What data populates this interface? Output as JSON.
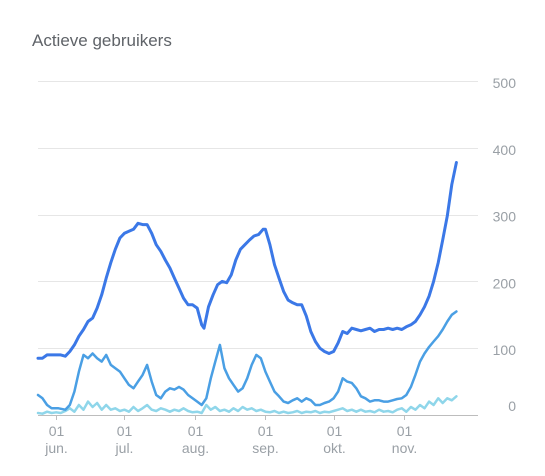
{
  "chart_data": {
    "type": "line",
    "title": "Actieve gebruikers",
    "xlabel": "",
    "ylabel": "",
    "x_domain": [
      "2019-05-24",
      "2019-11-30"
    ],
    "ylim": [
      0,
      500
    ],
    "y_ticks": [
      "0",
      "100",
      "200",
      "300",
      "400",
      "500"
    ],
    "y_axis_side": "right",
    "x_ticks": [
      {
        "date": "2019-06-01",
        "day": "01",
        "month": "jun."
      },
      {
        "date": "2019-07-01",
        "day": "01",
        "month": "jul."
      },
      {
        "date": "2019-08-01",
        "day": "01",
        "month": "aug."
      },
      {
        "date": "2019-09-01",
        "day": "01",
        "month": "sep."
      },
      {
        "date": "2019-10-01",
        "day": "01",
        "month": "okt."
      },
      {
        "date": "2019-11-01",
        "day": "01",
        "month": "nov."
      }
    ],
    "grid": true,
    "legend": "none",
    "series": [
      {
        "color": "#3b78e7",
        "points": [
          [
            "2019-05-24",
            85
          ],
          [
            "2019-05-26",
            85
          ],
          [
            "2019-05-28",
            90
          ],
          [
            "2019-05-30",
            90
          ],
          [
            "2019-06-03",
            90
          ],
          [
            "2019-06-05",
            88
          ],
          [
            "2019-06-07",
            95
          ],
          [
            "2019-06-09",
            105
          ],
          [
            "2019-06-11",
            118
          ],
          [
            "2019-06-13",
            128
          ],
          [
            "2019-06-15",
            140
          ],
          [
            "2019-06-17",
            145
          ],
          [
            "2019-06-19",
            160
          ],
          [
            "2019-06-21",
            180
          ],
          [
            "2019-06-23",
            205
          ],
          [
            "2019-06-25",
            228
          ],
          [
            "2019-06-27",
            248
          ],
          [
            "2019-06-29",
            265
          ],
          [
            "2019-07-01",
            272
          ],
          [
            "2019-07-03",
            275
          ],
          [
            "2019-07-05",
            278
          ],
          [
            "2019-07-07",
            287
          ],
          [
            "2019-07-09",
            285
          ],
          [
            "2019-07-11",
            285
          ],
          [
            "2019-07-13",
            272
          ],
          [
            "2019-07-15",
            255
          ],
          [
            "2019-07-17",
            245
          ],
          [
            "2019-07-19",
            232
          ],
          [
            "2019-07-21",
            220
          ],
          [
            "2019-07-23",
            205
          ],
          [
            "2019-07-25",
            190
          ],
          [
            "2019-07-27",
            175
          ],
          [
            "2019-07-29",
            165
          ],
          [
            "2019-07-31",
            165
          ],
          [
            "2019-08-02",
            160
          ],
          [
            "2019-08-04",
            135
          ],
          [
            "2019-08-05",
            130
          ],
          [
            "2019-08-07",
            162
          ],
          [
            "2019-08-09",
            180
          ],
          [
            "2019-08-11",
            195
          ],
          [
            "2019-08-13",
            200
          ],
          [
            "2019-08-15",
            198
          ],
          [
            "2019-08-17",
            210
          ],
          [
            "2019-08-19",
            232
          ],
          [
            "2019-08-21",
            248
          ],
          [
            "2019-08-23",
            255
          ],
          [
            "2019-08-25",
            262
          ],
          [
            "2019-08-27",
            268
          ],
          [
            "2019-08-29",
            270
          ],
          [
            "2019-08-31",
            278
          ],
          [
            "2019-09-01",
            278
          ],
          [
            "2019-09-03",
            255
          ],
          [
            "2019-09-05",
            225
          ],
          [
            "2019-09-07",
            205
          ],
          [
            "2019-09-09",
            185
          ],
          [
            "2019-09-11",
            172
          ],
          [
            "2019-09-13",
            168
          ],
          [
            "2019-09-15",
            165
          ],
          [
            "2019-09-17",
            165
          ],
          [
            "2019-09-19",
            148
          ],
          [
            "2019-09-21",
            125
          ],
          [
            "2019-09-23",
            110
          ],
          [
            "2019-09-25",
            100
          ],
          [
            "2019-09-27",
            95
          ],
          [
            "2019-09-29",
            92
          ],
          [
            "2019-10-01",
            95
          ],
          [
            "2019-10-03",
            108
          ],
          [
            "2019-10-05",
            125
          ],
          [
            "2019-10-07",
            122
          ],
          [
            "2019-10-09",
            130
          ],
          [
            "2019-10-11",
            128
          ],
          [
            "2019-10-13",
            126
          ],
          [
            "2019-10-15",
            128
          ],
          [
            "2019-10-17",
            130
          ],
          [
            "2019-10-19",
            125
          ],
          [
            "2019-10-21",
            128
          ],
          [
            "2019-10-23",
            128
          ],
          [
            "2019-10-25",
            130
          ],
          [
            "2019-10-27",
            128
          ],
          [
            "2019-10-29",
            130
          ],
          [
            "2019-10-31",
            128
          ],
          [
            "2019-11-02",
            132
          ],
          [
            "2019-11-04",
            135
          ],
          [
            "2019-11-06",
            140
          ],
          [
            "2019-11-08",
            150
          ],
          [
            "2019-11-10",
            162
          ],
          [
            "2019-11-12",
            178
          ],
          [
            "2019-11-14",
            200
          ],
          [
            "2019-11-16",
            228
          ],
          [
            "2019-11-18",
            262
          ],
          [
            "2019-11-20",
            298
          ],
          [
            "2019-11-22",
            345
          ],
          [
            "2019-11-24",
            378
          ]
        ]
      },
      {
        "color": "#4a9fe4",
        "points": [
          [
            "2019-05-24",
            30
          ],
          [
            "2019-05-26",
            25
          ],
          [
            "2019-05-28",
            15
          ],
          [
            "2019-05-30",
            10
          ],
          [
            "2019-06-02",
            10
          ],
          [
            "2019-06-05",
            8
          ],
          [
            "2019-06-07",
            15
          ],
          [
            "2019-06-09",
            35
          ],
          [
            "2019-06-11",
            65
          ],
          [
            "2019-06-13",
            90
          ],
          [
            "2019-06-15",
            85
          ],
          [
            "2019-06-17",
            92
          ],
          [
            "2019-06-19",
            85
          ],
          [
            "2019-06-21",
            80
          ],
          [
            "2019-06-23",
            90
          ],
          [
            "2019-06-25",
            75
          ],
          [
            "2019-06-27",
            70
          ],
          [
            "2019-06-29",
            65
          ],
          [
            "2019-07-01",
            55
          ],
          [
            "2019-07-03",
            45
          ],
          [
            "2019-07-05",
            40
          ],
          [
            "2019-07-07",
            50
          ],
          [
            "2019-07-09",
            60
          ],
          [
            "2019-07-11",
            75
          ],
          [
            "2019-07-13",
            50
          ],
          [
            "2019-07-15",
            30
          ],
          [
            "2019-07-17",
            25
          ],
          [
            "2019-07-19",
            35
          ],
          [
            "2019-07-21",
            40
          ],
          [
            "2019-07-23",
            38
          ],
          [
            "2019-07-25",
            42
          ],
          [
            "2019-07-27",
            38
          ],
          [
            "2019-07-29",
            30
          ],
          [
            "2019-07-31",
            25
          ],
          [
            "2019-08-02",
            20
          ],
          [
            "2019-08-04",
            15
          ],
          [
            "2019-08-06",
            25
          ],
          [
            "2019-08-08",
            55
          ],
          [
            "2019-08-10",
            80
          ],
          [
            "2019-08-12",
            105
          ],
          [
            "2019-08-14",
            70
          ],
          [
            "2019-08-16",
            55
          ],
          [
            "2019-08-18",
            45
          ],
          [
            "2019-08-20",
            35
          ],
          [
            "2019-08-22",
            40
          ],
          [
            "2019-08-24",
            55
          ],
          [
            "2019-08-26",
            75
          ],
          [
            "2019-08-28",
            90
          ],
          [
            "2019-08-30",
            85
          ],
          [
            "2019-09-01",
            65
          ],
          [
            "2019-09-03",
            50
          ],
          [
            "2019-09-05",
            35
          ],
          [
            "2019-09-07",
            28
          ],
          [
            "2019-09-09",
            20
          ],
          [
            "2019-09-11",
            18
          ],
          [
            "2019-09-13",
            22
          ],
          [
            "2019-09-15",
            25
          ],
          [
            "2019-09-17",
            20
          ],
          [
            "2019-09-19",
            25
          ],
          [
            "2019-09-21",
            22
          ],
          [
            "2019-09-23",
            15
          ],
          [
            "2019-09-25",
            15
          ],
          [
            "2019-09-27",
            18
          ],
          [
            "2019-09-29",
            20
          ],
          [
            "2019-10-01",
            25
          ],
          [
            "2019-10-03",
            35
          ],
          [
            "2019-10-05",
            55
          ],
          [
            "2019-10-07",
            50
          ],
          [
            "2019-10-09",
            48
          ],
          [
            "2019-10-11",
            40
          ],
          [
            "2019-10-13",
            28
          ],
          [
            "2019-10-15",
            25
          ],
          [
            "2019-10-17",
            20
          ],
          [
            "2019-10-19",
            22
          ],
          [
            "2019-10-21",
            22
          ],
          [
            "2019-10-23",
            20
          ],
          [
            "2019-10-25",
            20
          ],
          [
            "2019-10-27",
            22
          ],
          [
            "2019-10-29",
            24
          ],
          [
            "2019-10-31",
            25
          ],
          [
            "2019-11-02",
            30
          ],
          [
            "2019-11-04",
            42
          ],
          [
            "2019-11-06",
            60
          ],
          [
            "2019-11-08",
            80
          ],
          [
            "2019-11-10",
            92
          ],
          [
            "2019-11-12",
            102
          ],
          [
            "2019-11-14",
            110
          ],
          [
            "2019-11-16",
            118
          ],
          [
            "2019-11-18",
            128
          ],
          [
            "2019-11-20",
            140
          ],
          [
            "2019-11-22",
            150
          ],
          [
            "2019-11-24",
            155
          ]
        ]
      },
      {
        "color": "#8fd6ea",
        "points": [
          [
            "2019-05-24",
            3
          ],
          [
            "2019-05-26",
            2
          ],
          [
            "2019-05-28",
            5
          ],
          [
            "2019-05-30",
            3
          ],
          [
            "2019-06-01",
            4
          ],
          [
            "2019-06-03",
            3
          ],
          [
            "2019-06-05",
            6
          ],
          [
            "2019-06-07",
            10
          ],
          [
            "2019-06-09",
            5
          ],
          [
            "2019-06-11",
            15
          ],
          [
            "2019-06-13",
            8
          ],
          [
            "2019-06-15",
            20
          ],
          [
            "2019-06-17",
            12
          ],
          [
            "2019-06-19",
            18
          ],
          [
            "2019-06-21",
            8
          ],
          [
            "2019-06-23",
            15
          ],
          [
            "2019-06-25",
            8
          ],
          [
            "2019-06-27",
            10
          ],
          [
            "2019-06-29",
            6
          ],
          [
            "2019-07-01",
            8
          ],
          [
            "2019-07-03",
            5
          ],
          [
            "2019-07-05",
            12
          ],
          [
            "2019-07-07",
            6
          ],
          [
            "2019-07-09",
            10
          ],
          [
            "2019-07-11",
            15
          ],
          [
            "2019-07-13",
            8
          ],
          [
            "2019-07-15",
            6
          ],
          [
            "2019-07-17",
            10
          ],
          [
            "2019-07-19",
            8
          ],
          [
            "2019-07-21",
            5
          ],
          [
            "2019-07-23",
            8
          ],
          [
            "2019-07-25",
            6
          ],
          [
            "2019-07-27",
            10
          ],
          [
            "2019-07-29",
            6
          ],
          [
            "2019-07-31",
            4
          ],
          [
            "2019-08-02",
            5
          ],
          [
            "2019-08-04",
            3
          ],
          [
            "2019-08-06",
            15
          ],
          [
            "2019-08-08",
            8
          ],
          [
            "2019-08-10",
            12
          ],
          [
            "2019-08-12",
            6
          ],
          [
            "2019-08-14",
            8
          ],
          [
            "2019-08-16",
            5
          ],
          [
            "2019-08-18",
            10
          ],
          [
            "2019-08-20",
            6
          ],
          [
            "2019-08-22",
            12
          ],
          [
            "2019-08-24",
            8
          ],
          [
            "2019-08-26",
            10
          ],
          [
            "2019-08-28",
            6
          ],
          [
            "2019-08-30",
            8
          ],
          [
            "2019-09-01",
            5
          ],
          [
            "2019-09-03",
            4
          ],
          [
            "2019-09-05",
            6
          ],
          [
            "2019-09-07",
            3
          ],
          [
            "2019-09-09",
            5
          ],
          [
            "2019-09-11",
            3
          ],
          [
            "2019-09-13",
            4
          ],
          [
            "2019-09-15",
            6
          ],
          [
            "2019-09-17",
            3
          ],
          [
            "2019-09-19",
            5
          ],
          [
            "2019-09-21",
            4
          ],
          [
            "2019-09-23",
            6
          ],
          [
            "2019-09-25",
            3
          ],
          [
            "2019-09-27",
            5
          ],
          [
            "2019-09-29",
            4
          ],
          [
            "2019-10-01",
            6
          ],
          [
            "2019-10-03",
            8
          ],
          [
            "2019-10-05",
            10
          ],
          [
            "2019-10-07",
            6
          ],
          [
            "2019-10-09",
            8
          ],
          [
            "2019-10-11",
            5
          ],
          [
            "2019-10-13",
            8
          ],
          [
            "2019-10-15",
            5
          ],
          [
            "2019-10-17",
            6
          ],
          [
            "2019-10-19",
            4
          ],
          [
            "2019-10-21",
            8
          ],
          [
            "2019-10-23",
            5
          ],
          [
            "2019-10-25",
            6
          ],
          [
            "2019-10-27",
            4
          ],
          [
            "2019-10-29",
            8
          ],
          [
            "2019-10-31",
            10
          ],
          [
            "2019-11-02",
            5
          ],
          [
            "2019-11-04",
            12
          ],
          [
            "2019-11-06",
            8
          ],
          [
            "2019-11-08",
            15
          ],
          [
            "2019-11-10",
            10
          ],
          [
            "2019-11-12",
            20
          ],
          [
            "2019-11-14",
            15
          ],
          [
            "2019-11-16",
            25
          ],
          [
            "2019-11-18",
            18
          ],
          [
            "2019-11-20",
            25
          ],
          [
            "2019-11-22",
            22
          ],
          [
            "2019-11-24",
            28
          ]
        ]
      }
    ]
  },
  "colors": {
    "grid": "#e6e6e6",
    "axis_baseline": "#bdbdbd",
    "tick_text": "#9aa0a6",
    "title_text": "#5f6368"
  }
}
